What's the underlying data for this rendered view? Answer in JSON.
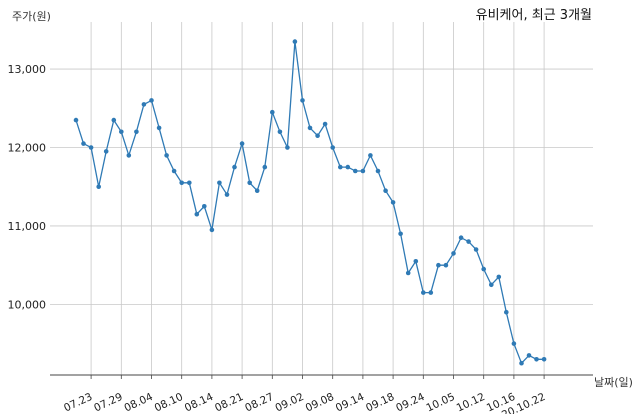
{
  "chart_data": {
    "type": "line",
    "title": "유비케어, 최근 3개월",
    "ylabel": "주가(원)",
    "xlabel": "날짜(일)",
    "ylim": [
      9100,
      13600
    ],
    "yticks": [
      10000,
      11000,
      12000,
      13000
    ],
    "ytick_labels": [
      "10,000",
      "11,000",
      "12,000",
      "13,000"
    ],
    "xtick_labels": [
      "07.23",
      "07.29",
      "08.04",
      "08.10",
      "08.14",
      "08.21",
      "08.27",
      "09.02",
      "09.08",
      "09.14",
      "09.18",
      "09.24",
      "10.05",
      "10.12",
      "10.16",
      "20.10.22"
    ],
    "xtick_indices": [
      2,
      6,
      10,
      14,
      18,
      22,
      26,
      30,
      34,
      38,
      42,
      46,
      50,
      54,
      58,
      62
    ],
    "grid": true,
    "line_color": "#2f7ab5",
    "series": [
      {
        "values": [
          12350,
          12050,
          12000,
          11500,
          11950,
          12350,
          12200,
          11900,
          12200,
          12550,
          12600,
          12250,
          11900,
          11700,
          11550,
          11550,
          11150,
          11250,
          10950,
          11550,
          11400,
          11750,
          12050,
          11550,
          11450,
          11750,
          12450,
          12200,
          12000,
          13350,
          12600,
          12250,
          12150,
          12300,
          12000,
          11750,
          11750,
          11700,
          11700,
          11900,
          11700,
          11450,
          11300,
          10900,
          10400,
          10550,
          10150,
          10150,
          10500,
          10500,
          10650,
          10850,
          10800,
          10700,
          10450,
          10250,
          10350,
          9900,
          9500,
          9250,
          9350,
          9300,
          9300
        ]
      }
    ]
  }
}
